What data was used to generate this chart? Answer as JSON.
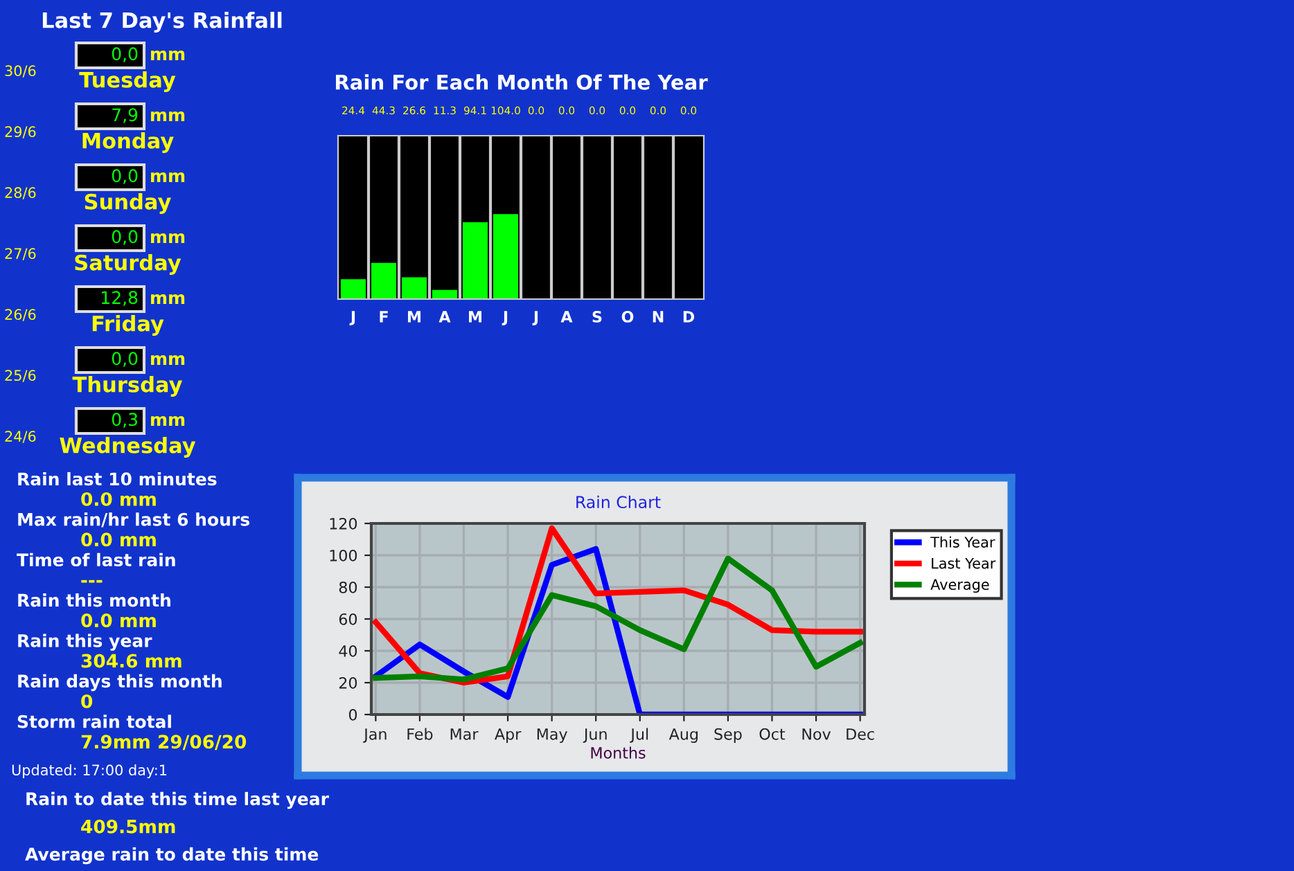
{
  "chart_data": [
    {
      "type": "other",
      "title": "Last 7 Day's Rainfall",
      "annotations": [
        "30/6",
        "0,0",
        "mm",
        "Tuesday",
        "29/6",
        "7,9",
        "mm",
        "Monday",
        "28/6",
        "0,0",
        "mm",
        "Sunday",
        "27/6",
        "0,0",
        "mm",
        "Saturday",
        "26/6",
        "12,8",
        "mm",
        "Friday",
        "25/6",
        "0,0",
        "mm",
        "Thursday",
        "24/6",
        "0,3",
        "mm",
        "Wednesday"
      ]
    },
    {
      "type": "other",
      "annotations": [
        "Rain last 10 minutes",
        "0.0 mm",
        "Max rain/hr last 6 hours",
        "0.0 mm",
        "Time of last rain",
        "---",
        "Rain this month",
        "0.0 mm",
        "Rain this year",
        "304.6 mm",
        "Rain days this month",
        "0",
        "Storm rain total",
        "7.9mm 29/06/20"
      ]
    },
    {
      "type": "other",
      "annotations": [
        "Updated: 17:00 day:1"
      ]
    },
    {
      "type": "other",
      "annotations": [
        "Rain to date this time last year",
        "409.5mm",
        "Average rain to date this time"
      ]
    },
    {
      "type": "bar",
      "title": "Rain For Each Month Of The Year",
      "categories": [
        "J",
        "F",
        "M",
        "A",
        "M",
        "J",
        "J",
        "A",
        "S",
        "O",
        "N",
        "D"
      ],
      "values": [
        24.4,
        44.3,
        26.6,
        11.3,
        94.1,
        104.0,
        0.0,
        0.0,
        0.0,
        0.0,
        0.0,
        0.0
      ],
      "value_labels": [
        "24.4",
        "44.3",
        "26.6",
        "11.3",
        "94.1",
        "104.0",
        "0.0",
        "0.0",
        "0.0",
        "0.0",
        "0.0",
        "0.0"
      ],
      "color": "#00ff00",
      "ylim": [
        0,
        200
      ]
    },
    {
      "type": "line",
      "title": "Rain Chart",
      "xlabel": "Months",
      "categories": [
        "Jan",
        "Feb",
        "Mar",
        "Apr",
        "May",
        "Jun",
        "Jul",
        "Aug",
        "Sep",
        "Oct",
        "Nov",
        "Dec"
      ],
      "ylim": [
        0,
        120
      ],
      "yticks": [
        0,
        20,
        40,
        60,
        80,
        100,
        120
      ],
      "grid": true,
      "legend": "right",
      "series": [
        {
          "name": "This Year",
          "color": "#0000ff",
          "values": [
            24,
            44,
            27,
            11,
            94,
            104,
            0,
            0,
            0,
            0,
            0,
            0
          ]
        },
        {
          "name": "Last Year",
          "color": "#ff0000",
          "values": [
            58,
            26,
            20,
            24,
            117,
            76,
            77,
            78,
            69,
            53,
            52,
            52
          ]
        },
        {
          "name": "Average",
          "color": "#008000",
          "values": [
            23,
            24,
            22,
            29,
            75,
            68,
            53,
            41,
            98,
            78,
            30,
            45
          ]
        }
      ]
    }
  ]
}
